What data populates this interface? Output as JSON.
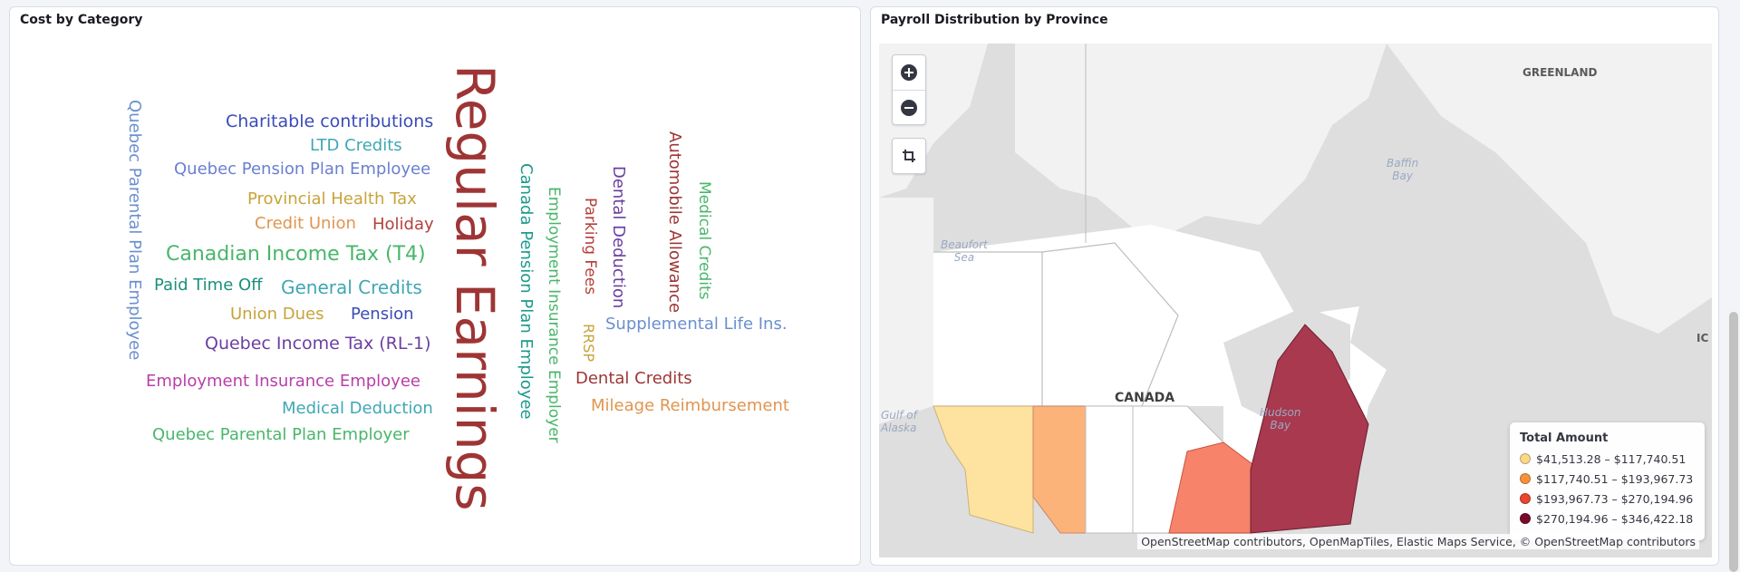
{
  "cost_panel": {
    "title": "Cost by Category",
    "words": [
      {
        "text": "Quebec Parental Plan Employee",
        "color": "#6a8fcf"
      },
      {
        "text": "Charitable contributions",
        "color": "#3a4bb8"
      },
      {
        "text": "LTD Credits",
        "color": "#3fa7b5"
      },
      {
        "text": "Quebec Pension Plan Employee",
        "color": "#6a7fd0"
      },
      {
        "text": "Provincial Health Tax",
        "color": "#c7a43a"
      },
      {
        "text": "Credit Union",
        "color": "#e0954f"
      },
      {
        "text": "Holiday",
        "color": "#b5403a"
      },
      {
        "text": "Canadian Income Tax (T4)",
        "color": "#48b66a"
      },
      {
        "text": "Paid Time Off",
        "color": "#1b8f7c"
      },
      {
        "text": "General Credits",
        "color": "#3fa7b5"
      },
      {
        "text": "Union Dues",
        "color": "#c7a43a"
      },
      {
        "text": "Pension",
        "color": "#3a4bb8"
      },
      {
        "text": "Quebec Income Tax (RL-1)",
        "color": "#6b3fa0"
      },
      {
        "text": "Employment Insurance Employee",
        "color": "#b83fa8"
      },
      {
        "text": "Medical Deduction",
        "color": "#3fa7b5"
      },
      {
        "text": "Quebec Parental Plan Employer",
        "color": "#48b66a"
      },
      {
        "text": "Regular Earnings",
        "color": "#9e3535"
      },
      {
        "text": "Canada Pension Plan Employee",
        "color": "#1b9a8c"
      },
      {
        "text": "Employment Insurance Employer",
        "color": "#48b66a"
      },
      {
        "text": "Parking Fees",
        "color": "#b5403a"
      },
      {
        "text": "Dental Deduction",
        "color": "#6b3fa0"
      },
      {
        "text": "Automobile Allowance",
        "color": "#9e3535"
      },
      {
        "text": "Medical Credits",
        "color": "#48b66a"
      },
      {
        "text": "RRSP",
        "color": "#c7a43a"
      },
      {
        "text": "Supplemental Life Ins.",
        "color": "#6a8fcf"
      },
      {
        "text": "Dental Credits",
        "color": "#9e3535"
      },
      {
        "text": "Mileage Reimbursement",
        "color": "#e0954f"
      }
    ]
  },
  "map_panel": {
    "title": "Payroll Distribution by Province",
    "labels": {
      "greenland": "GREENLAND",
      "baffin_bay": "Baffin\nBay",
      "beaufort_sea": "Beaufort\nSea",
      "canada": "CANADA",
      "hudson_bay": "Hudson\nBay",
      "gulf_alaska": "Gulf of\nAlaska",
      "iceland_partial": "IC"
    },
    "controls": {
      "zoom_in_icon": "plus-circle-icon",
      "zoom_out_icon": "minus-circle-icon",
      "crop_icon": "crop-icon"
    },
    "legend": {
      "title": "Total Amount",
      "items": [
        {
          "label": "$41,513.28 – $117,740.51",
          "color": "#fbd889"
        },
        {
          "label": "$117,740.51 – $193,967.73",
          "color": "#f7923e"
        },
        {
          "label": "$193,967.73 – $270,194.96",
          "color": "#e8462e"
        },
        {
          "label": "$270,194.96 – $346,422.18",
          "color": "#7a0a2a"
        }
      ]
    },
    "province_colors": {
      "british_columbia": "#fde2a0",
      "alberta": "#fcb37a",
      "ontario": "#f6836a",
      "quebec": "#a8394f"
    },
    "attribution": "OpenStreetMap contributors, OpenMapTiles, Elastic Maps Service, © OpenStreetMap contributors"
  }
}
